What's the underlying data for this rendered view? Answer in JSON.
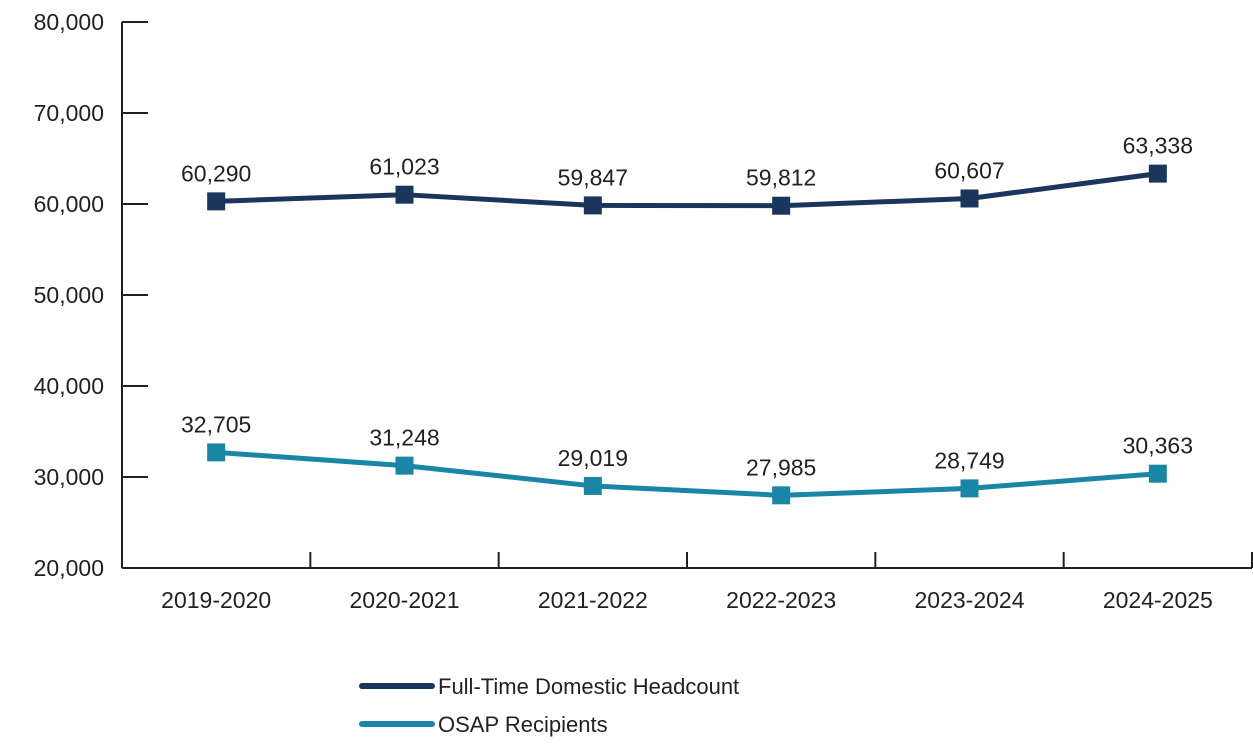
{
  "chart_data": {
    "type": "line",
    "title": "",
    "xlabel": "",
    "ylabel": "",
    "categories": [
      "2019-2020",
      "2020-2021",
      "2021-2022",
      "2022-2023",
      "2023-2024",
      "2024-2025"
    ],
    "ylim": [
      20000,
      80000
    ],
    "yticks": [
      20000,
      30000,
      40000,
      50000,
      60000,
      70000,
      80000
    ],
    "ytick_labels": [
      "20,000",
      "30,000",
      "40,000",
      "50,000",
      "60,000",
      "70,000",
      "80,000"
    ],
    "grid": false,
    "legend_position": "bottom",
    "series": [
      {
        "name": "Full-Time Domestic Headcount",
        "color": "#1b365d",
        "marker": "square",
        "values": [
          60290,
          61023,
          59847,
          59812,
          60607,
          63338
        ],
        "labels": [
          "60,290",
          "61,023",
          "59,847",
          "59,812",
          "60,607",
          "63,338"
        ]
      },
      {
        "name": "OSAP Recipients",
        "color": "#1a86a6",
        "marker": "square",
        "values": [
          32705,
          31248,
          29019,
          27985,
          28749,
          30363
        ],
        "labels": [
          "32,705",
          "31,248",
          "29,019",
          "27,985",
          "28,749",
          "30,363"
        ]
      }
    ]
  }
}
